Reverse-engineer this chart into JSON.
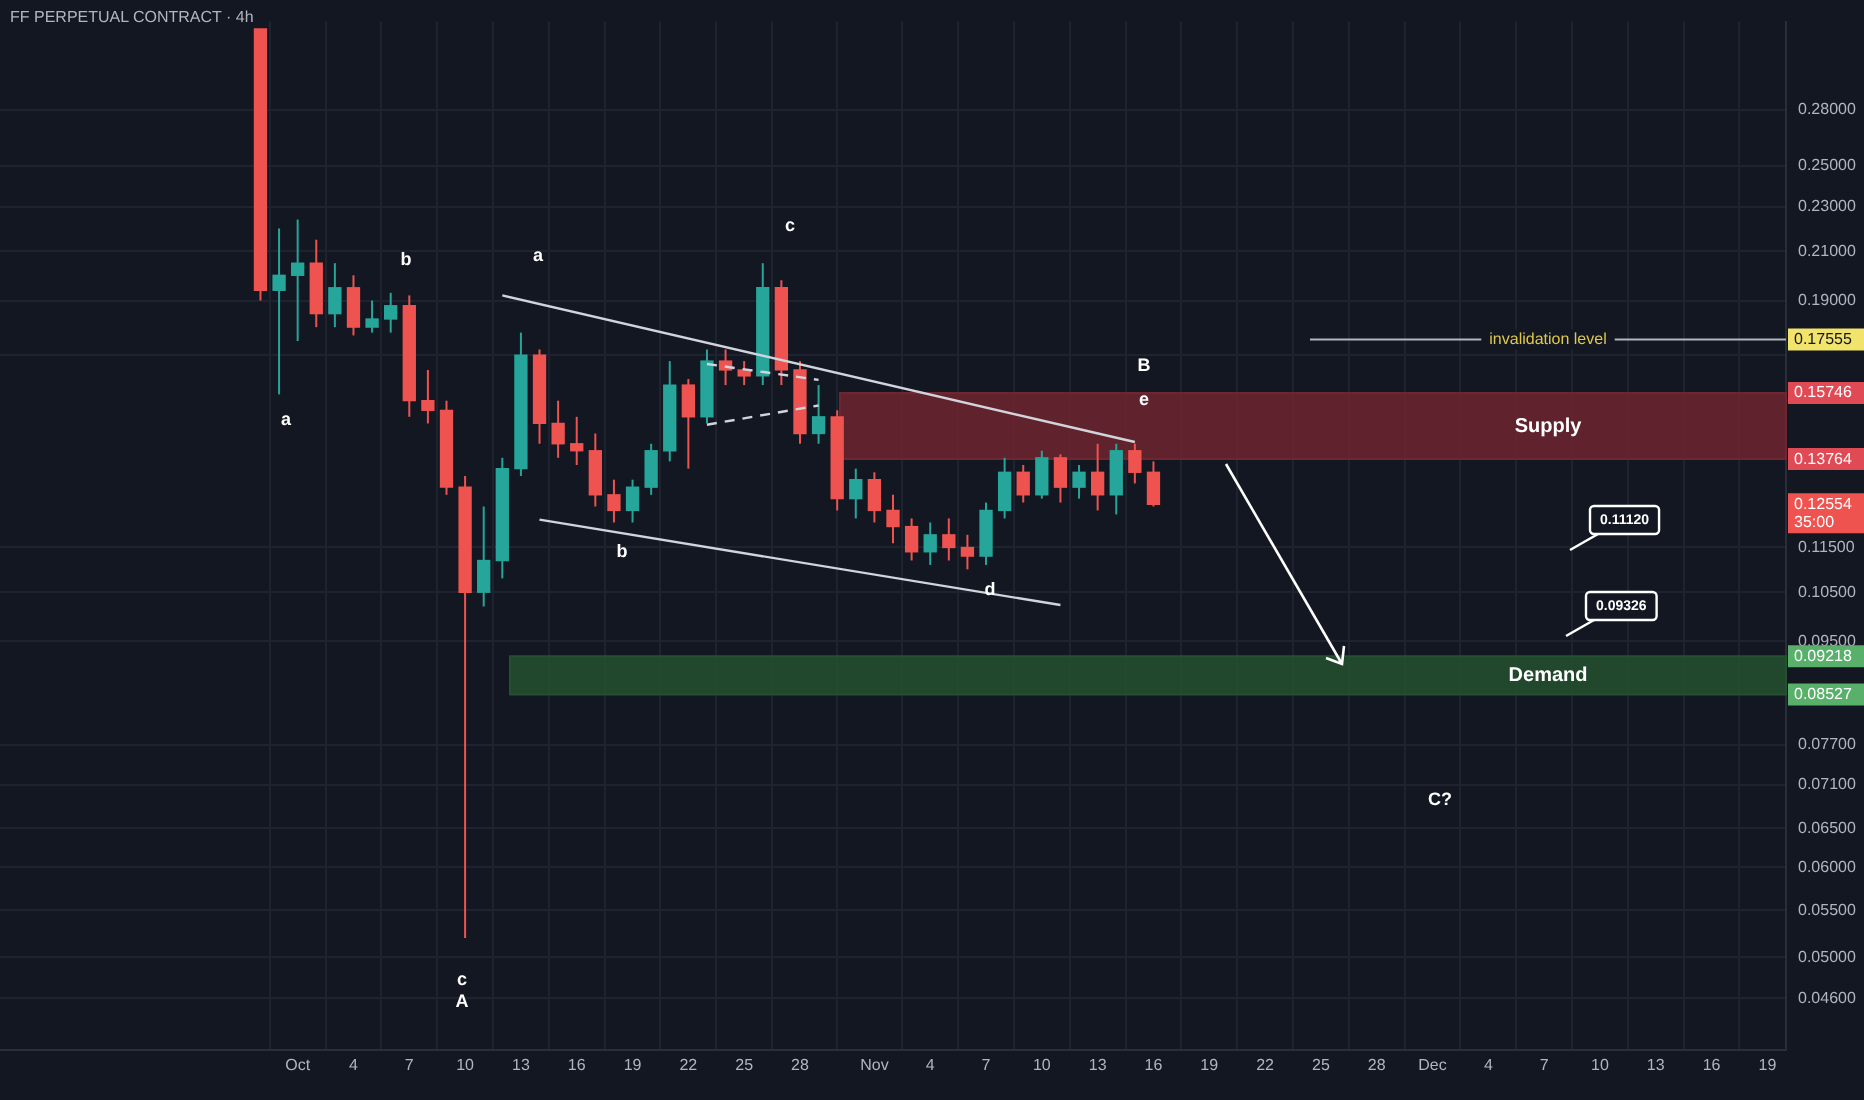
{
  "chart_data": {
    "type": "candlestick",
    "title": "FF PERPETUAL CONTRACT · 4h",
    "x": [
      "--09-29",
      "--09-30",
      "--10-01",
      "--10-02",
      "--10-03",
      "--10-04",
      "--10-05",
      "--10-06",
      "--10-07",
      "--10-08",
      "--10-09",
      "--10-10",
      "--10-11",
      "--10-12",
      "--10-13",
      "--10-14",
      "--10-15",
      "--10-16",
      "--10-17",
      "--10-18",
      "--10-19",
      "--10-20",
      "--10-21",
      "--10-22",
      "--10-23",
      "--10-24",
      "--10-25",
      "--10-26",
      "--10-27",
      "--10-28",
      "--10-29",
      "--10-30",
      "--10-31",
      "--11-01",
      "--11-02",
      "--11-03",
      "--11-04",
      "--11-05",
      "--11-06",
      "--11-07",
      "--11-08",
      "--11-09",
      "--11-10",
      "--11-11",
      "--11-12",
      "--11-13",
      "--11-14",
      "--11-15",
      "--11-16"
    ],
    "ohlc": [
      [
        0.33,
        0.33,
        0.19,
        0.194
      ],
      [
        0.194,
        0.22,
        0.157,
        0.2
      ],
      [
        0.2,
        0.224,
        0.175,
        0.205
      ],
      [
        0.205,
        0.215,
        0.18,
        0.185
      ],
      [
        0.185,
        0.205,
        0.18,
        0.195
      ],
      [
        0.195,
        0.2,
        0.177,
        0.18
      ],
      [
        0.18,
        0.19,
        0.178,
        0.183
      ],
      [
        0.183,
        0.193,
        0.178,
        0.188
      ],
      [
        0.188,
        0.192,
        0.15,
        0.155
      ],
      [
        0.155,
        0.165,
        0.148,
        0.152
      ],
      [
        0.152,
        0.155,
        0.128,
        0.13
      ],
      [
        0.13,
        0.133,
        0.052,
        0.105
      ],
      [
        0.105,
        0.125,
        0.102,
        0.112
      ],
      [
        0.112,
        0.138,
        0.108,
        0.135
      ],
      [
        0.135,
        0.178,
        0.133,
        0.17
      ],
      [
        0.17,
        0.172,
        0.142,
        0.148
      ],
      [
        0.148,
        0.155,
        0.138,
        0.142
      ],
      [
        0.142,
        0.15,
        0.136,
        0.14
      ],
      [
        0.14,
        0.145,
        0.125,
        0.128
      ],
      [
        0.128,
        0.132,
        0.121,
        0.124
      ],
      [
        0.124,
        0.132,
        0.121,
        0.13
      ],
      [
        0.13,
        0.142,
        0.128,
        0.14
      ],
      [
        0.14,
        0.168,
        0.137,
        0.16
      ],
      [
        0.16,
        0.162,
        0.135,
        0.15
      ],
      [
        0.15,
        0.172,
        0.148,
        0.168
      ],
      [
        0.168,
        0.172,
        0.16,
        0.165
      ],
      [
        0.165,
        0.168,
        0.16,
        0.163
      ],
      [
        0.163,
        0.205,
        0.16,
        0.195
      ],
      [
        0.195,
        0.198,
        0.16,
        0.165
      ],
      [
        0.165,
        0.168,
        0.142,
        0.145
      ],
      [
        0.145,
        0.16,
        0.142,
        0.15
      ],
      [
        0.15,
        0.152,
        0.124,
        0.127
      ],
      [
        0.127,
        0.135,
        0.122,
        0.132
      ],
      [
        0.132,
        0.134,
        0.121,
        0.124
      ],
      [
        0.124,
        0.128,
        0.116,
        0.12
      ],
      [
        0.12,
        0.122,
        0.112,
        0.114
      ],
      [
        0.114,
        0.121,
        0.111,
        0.118
      ],
      [
        0.118,
        0.122,
        0.112,
        0.115
      ],
      [
        0.115,
        0.118,
        0.11,
        0.113
      ],
      [
        0.113,
        0.126,
        0.111,
        0.124
      ],
      [
        0.124,
        0.138,
        0.122,
        0.134
      ],
      [
        0.134,
        0.136,
        0.126,
        0.128
      ],
      [
        0.128,
        0.14,
        0.127,
        0.138
      ],
      [
        0.138,
        0.139,
        0.126,
        0.13
      ],
      [
        0.13,
        0.136,
        0.127,
        0.134
      ],
      [
        0.134,
        0.142,
        0.124,
        0.128
      ],
      [
        0.128,
        0.142,
        0.123,
        0.14
      ],
      [
        0.14,
        0.142,
        0.131,
        0.134
      ],
      [
        0.134,
        0.137,
        0.125,
        0.12554
      ]
    ],
    "colors": [
      "#ef5350",
      "#26a69a",
      "#26a69a",
      "#ef5350",
      "#26a69a",
      "#ef5350",
      "#26a69a",
      "#26a69a",
      "#ef5350",
      "#ef5350",
      "#ef5350",
      "#ef5350",
      "#26a69a",
      "#26a69a",
      "#26a69a",
      "#ef5350",
      "#ef5350",
      "#ef5350",
      "#ef5350",
      "#ef5350",
      "#26a69a",
      "#26a69a",
      "#26a69a",
      "#ef5350",
      "#26a69a",
      "#ef5350",
      "#ef5350",
      "#26a69a",
      "#ef5350",
      "#ef5350",
      "#26a69a",
      "#ef5350",
      "#26a69a",
      "#ef5350",
      "#ef5350",
      "#ef5350",
      "#26a69a",
      "#ef5350",
      "#ef5350",
      "#26a69a",
      "#26a69a",
      "#ef5350",
      "#26a69a",
      "#ef5350",
      "#26a69a",
      "#ef5350",
      "#26a69a",
      "#ef5350",
      "#ef5350"
    ],
    "series": [
      {
        "type": "line",
        "color": "#d1d4dc",
        "x": [
          "--10-12",
          "--11-15"
        ],
        "values": [
          0.192,
          0.1425
        ]
      },
      {
        "type": "line",
        "color": "#d1d4dc",
        "x": [
          "--10-14",
          "--11-11"
        ],
        "values": [
          0.1217,
          0.1023
        ]
      },
      {
        "type": "line",
        "color": "#d1d4dc",
        "line_style": "dashed",
        "x": [
          "--10-23",
          "--10-29"
        ],
        "values": [
          0.167,
          0.1617
        ]
      },
      {
        "type": "line",
        "color": "#d1d4dc",
        "line_style": "dashed",
        "x": [
          "--10-23",
          "--10-29"
        ],
        "values": [
          0.1476,
          0.1535
        ]
      }
    ],
    "log": "y",
    "grid": true,
    "xlim": [
      "--09-15",
      "--12-20"
    ],
    "ylim": [
      0.0414,
      0.335
    ],
    "yticks": [
      {
        "value": 0.28,
        "label": "0.28000"
      },
      {
        "value": 0.25,
        "label": "0.25000"
      },
      {
        "value": 0.23,
        "label": "0.23000"
      },
      {
        "value": 0.21,
        "label": "0.21000"
      },
      {
        "value": 0.19,
        "label": "0.19000"
      },
      {
        "value": 0.17,
        "label": null
      },
      {
        "value": 0.115,
        "label": "0.11500"
      },
      {
        "value": 0.105,
        "label": "0.10500"
      },
      {
        "value": 0.095,
        "label": "0.09500"
      },
      {
        "value": 0.077,
        "label": "0.07700"
      },
      {
        "value": 0.071,
        "label": "0.07100"
      },
      {
        "value": 0.065,
        "label": "0.06500"
      },
      {
        "value": 0.06,
        "label": "0.06000"
      },
      {
        "value": 0.055,
        "label": "0.05500"
      },
      {
        "value": 0.05,
        "label": "0.05000"
      },
      {
        "value": 0.046,
        "label": "0.04600"
      }
    ],
    "xticks": [
      {
        "value": "--10-01",
        "label": "Oct"
      },
      {
        "value": "--10-04",
        "label": "4"
      },
      {
        "value": "--10-07",
        "label": "7"
      },
      {
        "value": "--10-10",
        "label": "10"
      },
      {
        "value": "--10-13",
        "label": "13"
      },
      {
        "value": "--10-16",
        "label": "16"
      },
      {
        "value": "--10-19",
        "label": "19"
      },
      {
        "value": "--10-22",
        "label": "22"
      },
      {
        "value": "--10-25",
        "label": "25"
      },
      {
        "value": "--10-28",
        "label": "28"
      },
      {
        "value": "--11-01",
        "label": "Nov"
      },
      {
        "value": "--11-04",
        "label": "4"
      },
      {
        "value": "--11-07",
        "label": "7"
      },
      {
        "value": "--11-10",
        "label": "10"
      },
      {
        "value": "--11-13",
        "label": "13"
      },
      {
        "value": "--11-16",
        "label": "16"
      },
      {
        "value": "--11-19",
        "label": "19"
      },
      {
        "value": "--11-22",
        "label": "22"
      },
      {
        "value": "--11-25",
        "label": "25"
      },
      {
        "value": "--11-28",
        "label": "28"
      },
      {
        "value": "--12-01",
        "label": "Dec"
      },
      {
        "value": "--12-04",
        "label": "4"
      },
      {
        "value": "--12-07",
        "label": "7"
      },
      {
        "value": "--12-10",
        "label": "10"
      },
      {
        "value": "--12-13",
        "label": "13"
      },
      {
        "value": "--12-16",
        "label": "16"
      },
      {
        "value": "--12-19",
        "label": "19"
      }
    ],
    "ref_lines": [
      {
        "axis": "y",
        "value": 0.17555,
        "label": "invalidation level",
        "color": "#b2b5be"
      }
    ],
    "bands": [
      {
        "axis": "y",
        "from": 0.13764,
        "to": 0.15746,
        "label": "Supply",
        "color": "#6e2630"
      },
      {
        "axis": "y",
        "from": 0.08527,
        "to": 0.09218,
        "label": "Demand",
        "color": "#24512f"
      }
    ],
    "annotations": [
      "a",
      "b",
      "a",
      "b",
      "c",
      "d",
      "B",
      "e",
      "c",
      "A",
      "C?",
      "0.11120",
      "0.09326",
      "0.12554",
      "35:00",
      "0.17555",
      "0.15746",
      "0.13764",
      "0.09218",
      "0.08527"
    ]
  }
}
